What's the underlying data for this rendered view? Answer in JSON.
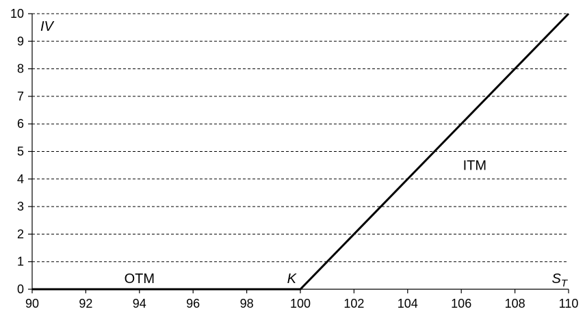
{
  "chart_data": {
    "type": "line",
    "title": "",
    "xlabel": "S_T",
    "ylabel": "IV",
    "xlim": [
      90,
      110
    ],
    "ylim": [
      0,
      10
    ],
    "grid": "horizontal-dashed",
    "x_ticks": [
      90,
      92,
      94,
      96,
      98,
      100,
      102,
      104,
      106,
      108,
      110
    ],
    "y_ticks": [
      0,
      1,
      2,
      3,
      4,
      5,
      6,
      7,
      8,
      9,
      10
    ],
    "series": [
      {
        "x": [
          90,
          100,
          110
        ],
        "y": [
          0,
          0,
          10
        ]
      }
    ],
    "annotations": {
      "iv": "IV",
      "st_main": "S",
      "st_sub": "T",
      "k": "K",
      "otm": "OTM",
      "itm": "ITM"
    },
    "annotation_values": {
      "k": {
        "x": 100,
        "y": 0
      },
      "otm": {
        "x": 94,
        "y": 0
      },
      "itm": {
        "x": 106.5,
        "y": 4.5
      }
    }
  }
}
